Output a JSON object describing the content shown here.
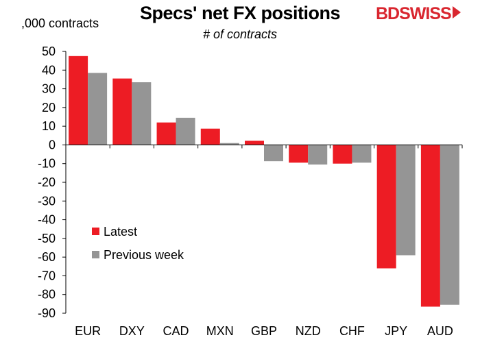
{
  "header": {
    "title": "Specs' net FX positions",
    "subtitle": "# of contracts",
    "unit_label": ",000 contracts",
    "logo": {
      "part1": "BD",
      "part2": "SWISS"
    }
  },
  "colors": {
    "latest": "#ed1c24",
    "previous": "#959595",
    "axis": "#000000"
  },
  "chart_data": {
    "type": "bar",
    "title": "Specs' net FX positions",
    "subtitle": "# of contracts",
    "ylabel": ",000 contracts",
    "xlabel": "",
    "categories": [
      "EUR",
      "DXY",
      "CAD",
      "MXN",
      "GBP",
      "NZD",
      "CHF",
      "JPY",
      "AUD"
    ],
    "series": [
      {
        "name": "Latest",
        "values": [
          47.5,
          35.5,
          12,
          8.7,
          2.2,
          -9.5,
          -10,
          -66,
          -86.5
        ]
      },
      {
        "name": "Previous week",
        "values": [
          38.5,
          33.5,
          14.5,
          1,
          -8.7,
          -10.5,
          -9.5,
          -59,
          -85.5
        ]
      }
    ],
    "ylim": [
      -90,
      50
    ],
    "yticks": [
      50,
      40,
      30,
      20,
      10,
      0,
      -10,
      -20,
      -30,
      -40,
      -50,
      -60,
      -70,
      -80,
      -90
    ],
    "grid": false,
    "legend_position": "bottom-left"
  }
}
